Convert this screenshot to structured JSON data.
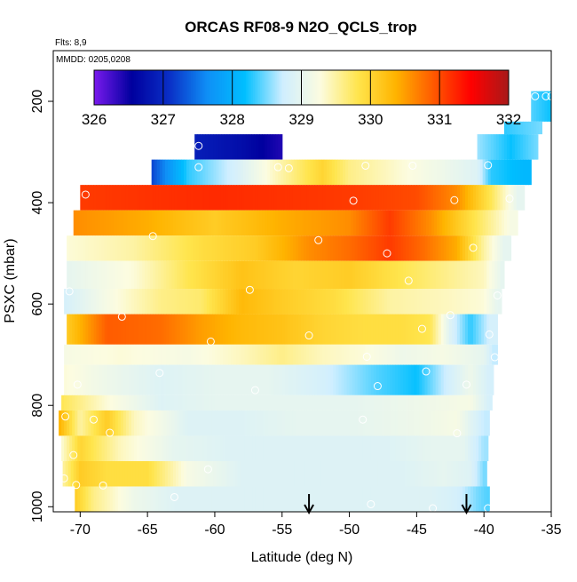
{
  "chart_data": {
    "type": "heatmap",
    "title": "ORCAS RF08-9 N2O_QCLS_trop",
    "subtitle_flights": "Flts: 8,9",
    "subtitle_dates": "MMDD: 0205,0208",
    "xlabel": "Latitude (deg N)",
    "ylabel": "PSXC (mbar)",
    "xlim": [
      -72,
      -35
    ],
    "ylim": [
      1010,
      100
    ],
    "x_ticks": [
      -70,
      -65,
      -60,
      -55,
      -50,
      -45,
      -40,
      -35
    ],
    "x_tick_labels": [
      "-70",
      "-65",
      "-60",
      "-55",
      "-50",
      "-45",
      "-40",
      "-35"
    ],
    "y_ticks": [
      200,
      400,
      600,
      800,
      1000
    ],
    "y_tick_labels": [
      "200",
      "400",
      "600",
      "800",
      "1000"
    ],
    "colorbar": {
      "min": 326,
      "max": 332,
      "ticks": [
        326,
        327,
        328,
        329,
        330,
        331,
        332
      ],
      "tick_labels": [
        "326",
        "327",
        "328",
        "329",
        "330",
        "331",
        "332"
      ],
      "colors": [
        "#7a1aee",
        "#00009e",
        "#0a2fc6",
        "#0f8ff6",
        "#00bfff",
        "#cfeeff",
        "#fcfce0",
        "#ffe54d",
        "#ffb400",
        "#ff5a00",
        "#ff0000",
        "#a81a1a"
      ]
    },
    "bands": [
      {
        "p_top": 180,
        "p_bot": 240,
        "lat_start": -36.5,
        "lat_end": -34.9,
        "points": [
          [
            -36.5,
            328.4
          ],
          [
            -35,
            328.2
          ]
        ]
      },
      {
        "p_top": 240,
        "p_bot": 265,
        "lat_start": -38.5,
        "lat_end": -35.7,
        "points": [
          [
            -38.5,
            328.3
          ],
          [
            -35.7,
            328.5
          ]
        ]
      },
      {
        "p_top": 265,
        "p_bot": 315,
        "lat_start": -61.5,
        "lat_end": -55,
        "points": [
          [
            -61.5,
            326.9
          ],
          [
            -58,
            326.7
          ],
          [
            -55,
            326.4
          ]
        ]
      },
      {
        "p_top": 265,
        "p_bot": 315,
        "lat_start": -40.5,
        "lat_end": -36,
        "points": [
          [
            -40.5,
            328.6
          ],
          [
            -38,
            328.2
          ],
          [
            -36,
            328.5
          ]
        ]
      },
      {
        "p_top": 315,
        "p_bot": 365,
        "lat_start": -64.7,
        "lat_end": -36.5,
        "points": [
          [
            -64.7,
            327.2
          ],
          [
            -62,
            328.3
          ],
          [
            -58.5,
            328.8
          ],
          [
            -55.5,
            329.4
          ],
          [
            -52,
            330.0
          ],
          [
            -50,
            329.6
          ],
          [
            -46,
            329.3
          ],
          [
            -43,
            329.1
          ],
          [
            -40.5,
            328.9
          ],
          [
            -39.5,
            328.3
          ],
          [
            -37,
            328.1
          ]
        ]
      },
      {
        "p_top": 365,
        "p_bot": 415,
        "lat_start": -70,
        "lat_end": -37,
        "points": [
          [
            -70,
            331.1
          ],
          [
            -60,
            331.2
          ],
          [
            -50,
            331.1
          ],
          [
            -45,
            331.0
          ],
          [
            -42,
            330.6
          ],
          [
            -39.5,
            329.8
          ],
          [
            -37.5,
            329.0
          ]
        ]
      },
      {
        "p_top": 415,
        "p_bot": 465,
        "lat_start": -70.5,
        "lat_end": -37.5,
        "points": [
          [
            -70.5,
            330.6
          ],
          [
            -65,
            330.4
          ],
          [
            -60,
            330.1
          ],
          [
            -55,
            330.4
          ],
          [
            -50,
            330.6
          ],
          [
            -47,
            331.1
          ],
          [
            -44,
            330.6
          ],
          [
            -41,
            329.9
          ],
          [
            -38,
            329.2
          ]
        ]
      },
      {
        "p_top": 465,
        "p_bot": 515,
        "lat_start": -71,
        "lat_end": -38,
        "points": [
          [
            -71,
            329.3
          ],
          [
            -66,
            329.5
          ],
          [
            -61,
            329.9
          ],
          [
            -57,
            330.1
          ],
          [
            -53,
            330.6
          ],
          [
            -50,
            330.8
          ],
          [
            -47,
            331.1
          ],
          [
            -44.5,
            330.8
          ],
          [
            -42,
            330.4
          ],
          [
            -40,
            329.5
          ],
          [
            -38.5,
            329.0
          ]
        ]
      },
      {
        "p_top": 515,
        "p_bot": 570,
        "lat_start": -71,
        "lat_end": -38.5,
        "points": [
          [
            -71,
            329.0
          ],
          [
            -66,
            329.3
          ],
          [
            -62,
            329.8
          ],
          [
            -58,
            330.2
          ],
          [
            -54,
            330.0
          ],
          [
            -50,
            330.1
          ],
          [
            -46,
            329.8
          ],
          [
            -43,
            329.6
          ],
          [
            -40,
            329.4
          ],
          [
            -38.7,
            329.0
          ]
        ]
      },
      {
        "p_top": 570,
        "p_bot": 620,
        "lat_start": -71.2,
        "lat_end": -38.7,
        "points": [
          [
            -71.2,
            328.8
          ],
          [
            -68,
            329.2
          ],
          [
            -64,
            329.6
          ],
          [
            -61,
            329.7
          ],
          [
            -58,
            330.3
          ],
          [
            -55,
            330.1
          ],
          [
            -51,
            329.9
          ],
          [
            -47,
            329.5
          ],
          [
            -43,
            329.4
          ],
          [
            -40,
            329.3
          ],
          [
            -39,
            329.0
          ]
        ]
      },
      {
        "p_top": 620,
        "p_bot": 680,
        "lat_start": -71,
        "lat_end": -39,
        "points": [
          [
            -71,
            330.1
          ],
          [
            -68,
            330.9
          ],
          [
            -64,
            330.8
          ],
          [
            -61,
            330.5
          ],
          [
            -58,
            330.3
          ],
          [
            -55,
            330.2
          ],
          [
            -52,
            330.0
          ],
          [
            -49,
            329.9
          ],
          [
            -46,
            329.9
          ],
          [
            -44,
            329.8
          ],
          [
            -42.5,
            328.9
          ],
          [
            -41,
            328.3
          ],
          [
            -39.5,
            328.8
          ]
        ]
      },
      {
        "p_top": 680,
        "p_bot": 720,
        "lat_start": -71.2,
        "lat_end": -39,
        "points": [
          [
            -71.2,
            329.2
          ],
          [
            -67,
            329.3
          ],
          [
            -62,
            329.2
          ],
          [
            -58,
            329.4
          ],
          [
            -55,
            329.6
          ],
          [
            -52,
            329.4
          ],
          [
            -49,
            329.3
          ],
          [
            -46,
            329.1
          ],
          [
            -43,
            329.2
          ],
          [
            -40,
            329.0
          ],
          [
            -39.3,
            328.7
          ]
        ]
      },
      {
        "p_top": 720,
        "p_bot": 780,
        "lat_start": -71.2,
        "lat_end": -39.3,
        "points": [
          [
            -71.2,
            329.3
          ],
          [
            -68,
            329.1
          ],
          [
            -64,
            328.9
          ],
          [
            -60,
            329.0
          ],
          [
            -56,
            329.0
          ],
          [
            -52,
            328.8
          ],
          [
            -48,
            328.4
          ],
          [
            -45,
            328.2
          ],
          [
            -43,
            328.7
          ],
          [
            -41,
            329.1
          ],
          [
            -39.6,
            328.8
          ]
        ]
      },
      {
        "p_top": 780,
        "p_bot": 810,
        "lat_start": -71.4,
        "lat_end": -39.4,
        "points": [
          [
            -71.4,
            329.8
          ],
          [
            -68,
            329.3
          ],
          [
            -64,
            328.9
          ],
          [
            -60,
            329.0
          ],
          [
            -55,
            329.0
          ],
          [
            -50,
            329.0
          ],
          [
            -45,
            329.1
          ],
          [
            -41,
            329.2
          ],
          [
            -39.6,
            328.8
          ]
        ]
      },
      {
        "p_top": 810,
        "p_bot": 860,
        "lat_start": -71.6,
        "lat_end": -39.6,
        "points": [
          [
            -71.6,
            330.4
          ],
          [
            -70,
            329.5
          ],
          [
            -68,
            330.1
          ],
          [
            -66,
            329.4
          ],
          [
            -62,
            328.9
          ],
          [
            -58,
            328.9
          ],
          [
            -54,
            329.0
          ],
          [
            -50,
            329.0
          ],
          [
            -45,
            329.1
          ],
          [
            -42,
            329.2
          ],
          [
            -40,
            328.7
          ]
        ]
      },
      {
        "p_top": 860,
        "p_bot": 910,
        "lat_start": -71.4,
        "lat_end": -39.7,
        "points": [
          [
            -71.4,
            329.3
          ],
          [
            -70,
            330.0
          ],
          [
            -67,
            329.4
          ],
          [
            -63,
            329.0
          ],
          [
            -59,
            328.9
          ],
          [
            -55,
            328.9
          ],
          [
            -51,
            328.9
          ],
          [
            -47,
            328.9
          ],
          [
            -44,
            329.0
          ],
          [
            -41.5,
            329.0
          ],
          [
            -40,
            328.6
          ]
        ]
      },
      {
        "p_top": 910,
        "p_bot": 960,
        "lat_start": -71.3,
        "lat_end": -39.8,
        "points": [
          [
            -71.3,
            329.5
          ],
          [
            -70,
            330.1
          ],
          [
            -68,
            329.9
          ],
          [
            -65,
            329.9
          ],
          [
            -62,
            329.2
          ],
          [
            -58,
            328.9
          ],
          [
            -54,
            328.9
          ],
          [
            -50,
            328.9
          ],
          [
            -46,
            328.9
          ],
          [
            -43,
            329.0
          ],
          [
            -41,
            328.9
          ],
          [
            -40,
            328.5
          ]
        ]
      },
      {
        "p_top": 960,
        "p_bot": 1010,
        "lat_start": -70.4,
        "lat_end": -39.6,
        "points": [
          [
            -70.4,
            330.1
          ],
          [
            -69,
            329.6
          ],
          [
            -66,
            329.1
          ],
          [
            -63,
            328.9
          ],
          [
            -58,
            328.9
          ],
          [
            -53,
            328.9
          ],
          [
            -48,
            328.9
          ],
          [
            -44,
            328.9
          ],
          [
            -42,
            328.8
          ],
          [
            -40.5,
            328.5
          ],
          [
            -39.8,
            328.4
          ]
        ]
      }
    ],
    "sample_points": [
      [
        -36.2,
        190
      ],
      [
        -35.4,
        190
      ],
      [
        -35.0,
        190
      ],
      [
        -61.2,
        288
      ],
      [
        -61.2,
        330
      ],
      [
        -55.3,
        330
      ],
      [
        -54.5,
        332
      ],
      [
        -48.8,
        327
      ],
      [
        -45.3,
        327
      ],
      [
        -39.7,
        326
      ],
      [
        -69.6,
        384
      ],
      [
        -49.7,
        396
      ],
      [
        -42.2,
        395
      ],
      [
        -38.1,
        392
      ],
      [
        -64.6,
        466
      ],
      [
        -52.3,
        474
      ],
      [
        -47.2,
        500
      ],
      [
        -40.8,
        489
      ],
      [
        -45.6,
        554
      ],
      [
        -57.4,
        572
      ],
      [
        -70.8,
        575
      ],
      [
        -39.0,
        583
      ],
      [
        -66.9,
        625
      ],
      [
        -42.5,
        622
      ],
      [
        -44.6,
        649
      ],
      [
        -53.0,
        662
      ],
      [
        -39.6,
        660
      ],
      [
        -60.3,
        674
      ],
      [
        -48.7,
        704
      ],
      [
        -39.2,
        705
      ],
      [
        -44.3,
        733
      ],
      [
        -64.1,
        736
      ],
      [
        -70.2,
        759
      ],
      [
        -47.9,
        762
      ],
      [
        -41.3,
        759
      ],
      [
        -57.0,
        770
      ],
      [
        -71.1,
        822
      ],
      [
        -49.0,
        828
      ],
      [
        -69.0,
        828
      ],
      [
        -67.8,
        854
      ],
      [
        -42.0,
        855
      ],
      [
        -70.5,
        898
      ],
      [
        -60.5,
        926
      ],
      [
        -71.2,
        944
      ],
      [
        -70.3,
        957
      ],
      [
        -68.3,
        958
      ],
      [
        -63.0,
        981
      ],
      [
        -48.4,
        995
      ],
      [
        -43.8,
        1003
      ],
      [
        -39.7,
        1003
      ]
    ],
    "arrows_latitude": [
      -53.0,
      -41.3
    ]
  }
}
